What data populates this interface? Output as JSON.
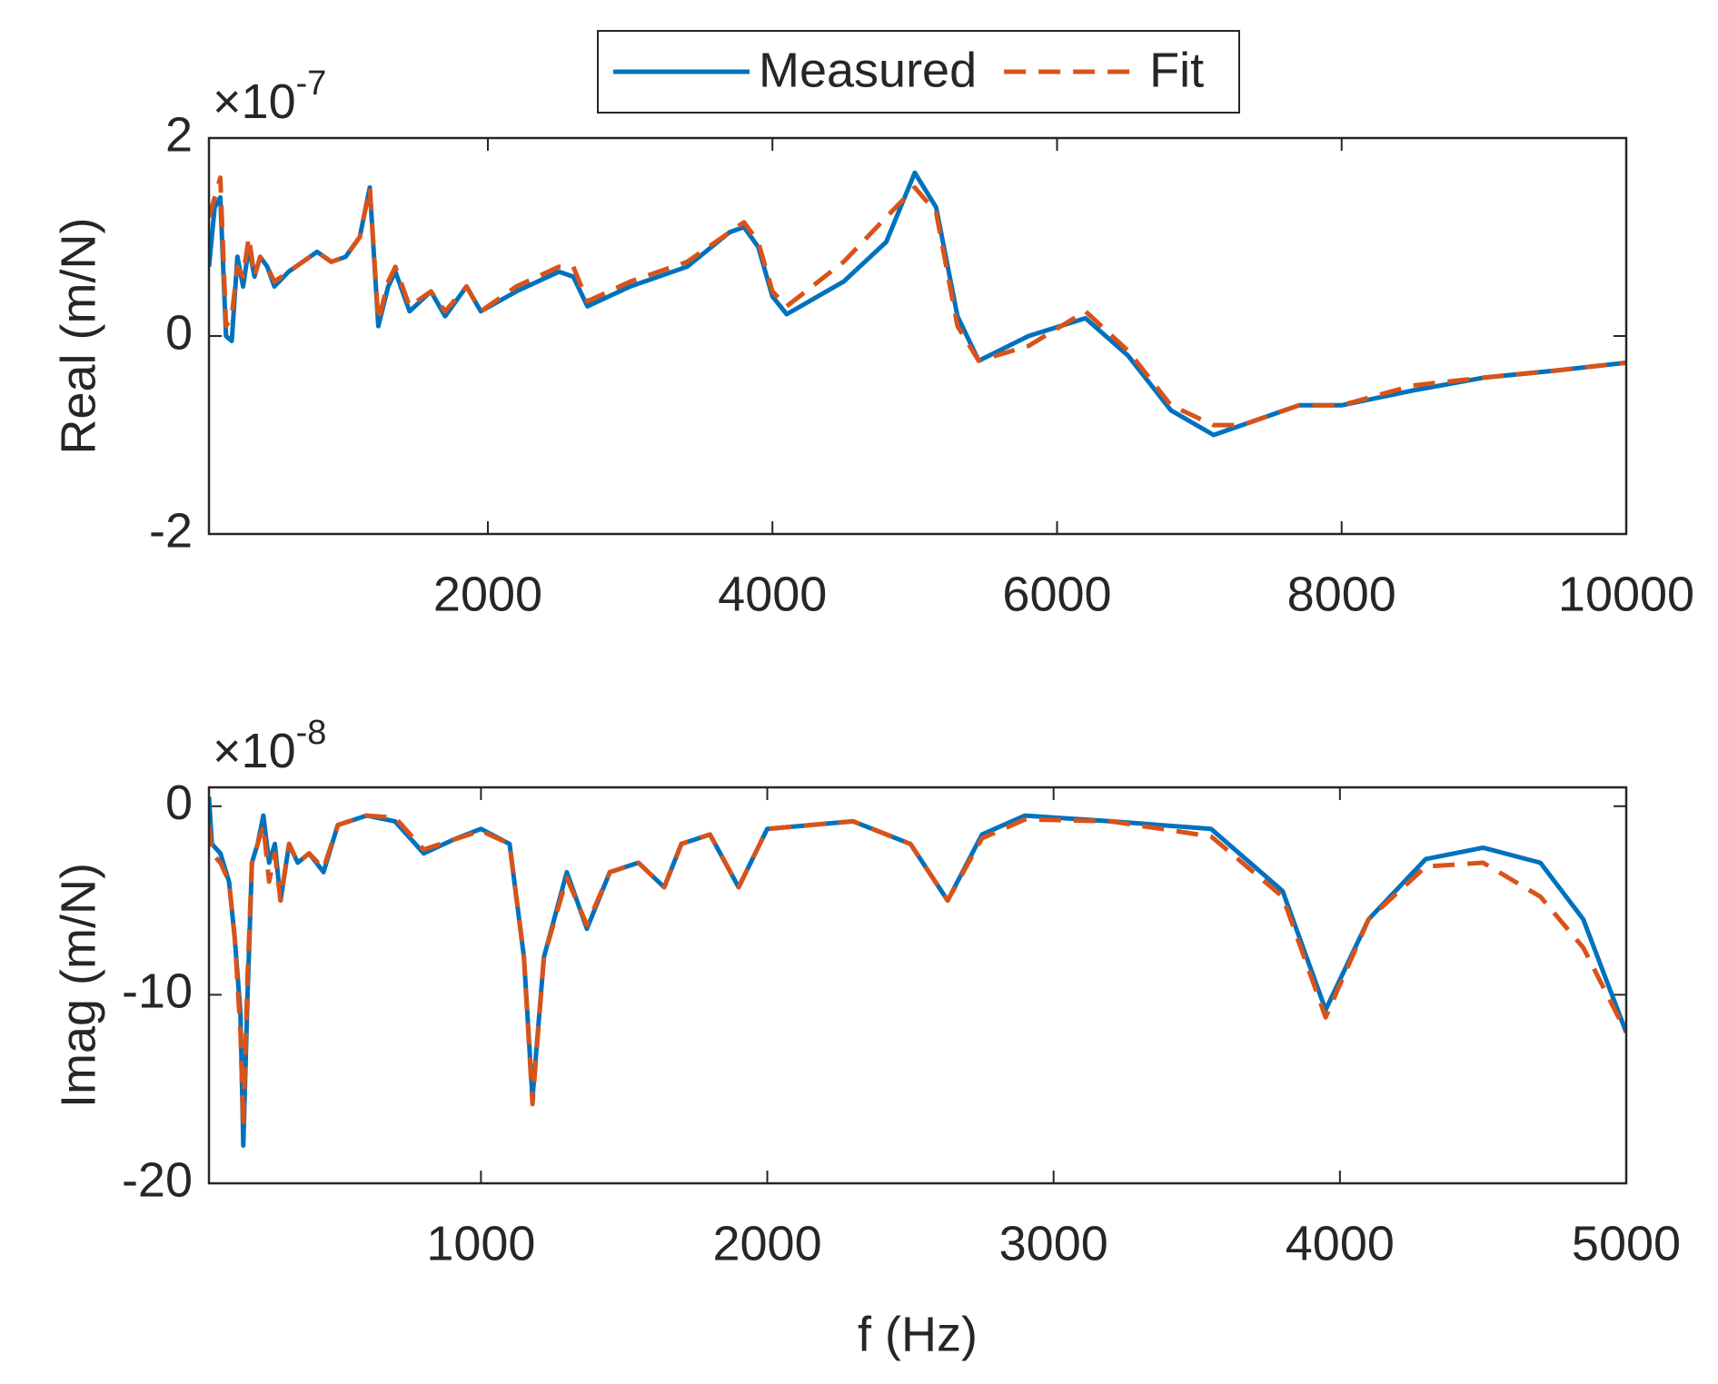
{
  "chart_data": [
    {
      "type": "line",
      "ylabel": "Real (m/N)",
      "y_multiplier": {
        "base": "×10",
        "exponent": "-7"
      },
      "xlim": [
        40,
        10000
      ],
      "ylim": [
        -2,
        2
      ],
      "xticks": [
        2000,
        4000,
        6000,
        8000,
        10000
      ],
      "yticks": [
        -2,
        0,
        2
      ],
      "legend": "top",
      "x": [
        40,
        80,
        120,
        160,
        200,
        240,
        280,
        320,
        360,
        400,
        450,
        500,
        600,
        800,
        900,
        1000,
        1100,
        1170,
        1230,
        1300,
        1350,
        1450,
        1600,
        1700,
        1850,
        1950,
        2200,
        2500,
        2600,
        2700,
        3000,
        3400,
        3700,
        3800,
        3900,
        4000,
        4100,
        4500,
        4800,
        5000,
        5150,
        5300,
        5450,
        5800,
        6200,
        6500,
        6800,
        7100,
        7300,
        7700,
        8000,
        8500,
        9000,
        9500,
        10000
      ],
      "series": [
        {
          "name": "Measured",
          "color": "#0072bd",
          "style": "solid",
          "values": [
            0.7,
            1.3,
            1.4,
            0.0,
            -0.05,
            0.8,
            0.5,
            0.9,
            0.6,
            0.8,
            0.7,
            0.5,
            0.65,
            0.85,
            0.75,
            0.8,
            1.0,
            1.5,
            0.1,
            0.5,
            0.65,
            0.25,
            0.45,
            0.2,
            0.5,
            0.25,
            0.45,
            0.65,
            0.6,
            0.3,
            0.5,
            0.7,
            1.05,
            1.1,
            0.9,
            0.4,
            0.22,
            0.55,
            0.95,
            1.65,
            1.3,
            0.2,
            -0.25,
            0.0,
            0.18,
            -0.2,
            -0.75,
            -1.0,
            -0.9,
            -0.7,
            -0.7,
            -0.55,
            -0.42,
            -0.35,
            -0.27
          ]
        },
        {
          "name": "Fit",
          "color": "#d95319",
          "style": "dashed",
          "values": [
            1.2,
            1.4,
            1.6,
            0.1,
            0.2,
            0.7,
            0.6,
            1.0,
            0.6,
            0.8,
            0.7,
            0.55,
            0.65,
            0.85,
            0.75,
            0.8,
            1.0,
            1.5,
            0.15,
            0.55,
            0.7,
            0.3,
            0.45,
            0.25,
            0.5,
            0.25,
            0.5,
            0.7,
            0.7,
            0.35,
            0.55,
            0.75,
            1.05,
            1.15,
            0.95,
            0.45,
            0.3,
            0.75,
            1.2,
            1.5,
            1.25,
            0.1,
            -0.25,
            -0.1,
            0.25,
            -0.15,
            -0.7,
            -0.9,
            -0.9,
            -0.7,
            -0.7,
            -0.5,
            -0.42,
            -0.35,
            -0.27
          ]
        }
      ]
    },
    {
      "type": "line",
      "ylabel": "Imag (m/N)",
      "xlabel": "f (Hz)",
      "y_multiplier": {
        "base": "×10",
        "exponent": "-8"
      },
      "xlim": [
        50,
        5000
      ],
      "ylim": [
        -20,
        1
      ],
      "xticks": [
        1000,
        2000,
        3000,
        4000,
        5000
      ],
      "yticks": [
        -20,
        -10,
        0
      ],
      "x": [
        50,
        60,
        90,
        120,
        140,
        160,
        170,
        185,
        200,
        220,
        240,
        260,
        280,
        300,
        330,
        360,
        400,
        450,
        500,
        600,
        700,
        800,
        900,
        1000,
        1100,
        1150,
        1180,
        1220,
        1300,
        1370,
        1450,
        1550,
        1640,
        1700,
        1800,
        1900,
        2000,
        2300,
        2500,
        2630,
        2750,
        2900,
        3200,
        3550,
        3800,
        3950,
        4100,
        4300,
        4500,
        4700,
        4850,
        5000
      ],
      "series": [
        {
          "color": "#0072bd",
          "style": "solid",
          "values": [
            0.5,
            -2,
            -2.5,
            -4,
            -7,
            -11,
            -18,
            -10,
            -3,
            -2,
            -0.5,
            -3,
            -2,
            -5,
            -2,
            -3,
            -2.5,
            -3.5,
            -1,
            -0.5,
            -0.8,
            -2.5,
            -1.8,
            -1.2,
            -2,
            -8,
            -15.5,
            -8,
            -3.5,
            -6.5,
            -3.5,
            -3,
            -4.3,
            -2,
            -1.5,
            -4.3,
            -1.2,
            -0.8,
            -2,
            -5,
            -1.5,
            -0.5,
            -0.8,
            -1.2,
            -4.5,
            -10.8,
            -6,
            -2.8,
            -2.2,
            -3,
            -6,
            -12
          ]
        },
        {
          "color": "#d95319",
          "style": "dashed",
          "values": [
            -1,
            -2.5,
            -3,
            -4,
            -7,
            -12,
            -17,
            -9,
            -3,
            -2,
            -1,
            -4,
            -2.5,
            -5,
            -2,
            -3,
            -2.5,
            -3.3,
            -1,
            -0.5,
            -0.6,
            -2.3,
            -1.8,
            -1.3,
            -2,
            -8,
            -15.8,
            -8,
            -3.8,
            -6.3,
            -3.5,
            -3,
            -4.3,
            -2,
            -1.5,
            -4.3,
            -1.2,
            -0.8,
            -2,
            -5,
            -1.7,
            -0.7,
            -0.8,
            -1.6,
            -4.8,
            -11.2,
            -6,
            -3.2,
            -3,
            -4.8,
            -7.5,
            -12
          ]
        }
      ]
    }
  ]
}
